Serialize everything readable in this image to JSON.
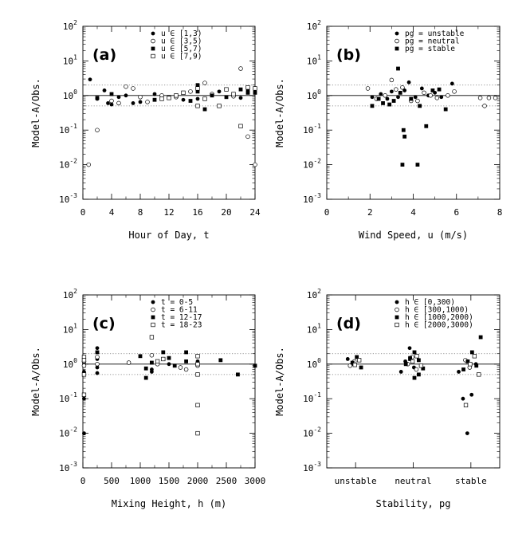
{
  "chart_data": [
    {
      "id": "a",
      "panel_label": "(a)",
      "type": "scatter",
      "xlabel": "Hour of Day, t",
      "ylabel": "Model-A/Obs.",
      "xlim": [
        0,
        24
      ],
      "ylim_log10": [
        -3,
        2
      ],
      "y_scale": "log",
      "xticks": [
        "0",
        "4",
        "8",
        "12",
        "16",
        "20",
        "24"
      ],
      "yticks": [
        "10^-3",
        "10^-2",
        "10^-1",
        "10^0",
        "10^1",
        "10^2"
      ],
      "reference_lines": {
        "solid": 1,
        "dotted": [
          0.5,
          2
        ]
      },
      "legend_position": "top-right",
      "series": [
        {
          "name": "u ∈ [1,3)",
          "marker": "filled-circle",
          "points": [
            [
              1,
              2.9
            ],
            [
              2,
              0.8
            ],
            [
              3,
              1.4
            ],
            [
              3.5,
              0.6
            ],
            [
              4,
              0.55
            ],
            [
              5,
              0.9
            ],
            [
              6,
              1.0
            ],
            [
              7,
              0.6
            ],
            [
              8,
              0.65
            ],
            [
              10,
              1.1
            ],
            [
              14,
              0.75
            ],
            [
              16,
              0.8
            ],
            [
              19,
              1.3
            ],
            [
              22,
              0.85
            ],
            [
              23,
              1.4
            ],
            [
              24,
              1.5
            ]
          ]
        },
        {
          "name": "u ∈ [3,5)",
          "marker": "open-circle",
          "points": [
            [
              0.8,
              0.01
            ],
            [
              2,
              0.1
            ],
            [
              4,
              0.7
            ],
            [
              5,
              0.6
            ],
            [
              6,
              1.8
            ],
            [
              7,
              1.6
            ],
            [
              8,
              0.9
            ],
            [
              9,
              0.65
            ],
            [
              11,
              1.0
            ],
            [
              13,
              0.9
            ],
            [
              15,
              1.3
            ],
            [
              17,
              2.3
            ],
            [
              18,
              1.1
            ],
            [
              21,
              0.95
            ],
            [
              22,
              6.0
            ],
            [
              23,
              0.065
            ],
            [
              24,
              0.01
            ]
          ]
        },
        {
          "name": "u ∈ [5,7)",
          "marker": "filled-square",
          "points": [
            [
              2,
              0.85
            ],
            [
              4,
              1.1
            ],
            [
              10,
              0.75
            ],
            [
              12,
              0.9
            ],
            [
              13,
              1.0
            ],
            [
              15,
              0.7
            ],
            [
              16,
              2.0
            ],
            [
              16,
              1.3
            ],
            [
              17,
              0.4
            ],
            [
              18,
              1.0
            ],
            [
              20,
              0.9
            ],
            [
              22,
              1.5
            ],
            [
              23,
              1.2
            ],
            [
              24,
              1.2
            ]
          ]
        },
        {
          "name": "u ∈ [7,9)",
          "marker": "open-square",
          "points": [
            [
              11,
              0.8
            ],
            [
              12,
              0.85
            ],
            [
              13,
              1.0
            ],
            [
              14,
              1.2
            ],
            [
              16,
              1.6
            ],
            [
              16,
              0.5
            ],
            [
              17,
              0.8
            ],
            [
              19,
              0.5
            ],
            [
              20,
              1.5
            ],
            [
              21,
              1.1
            ],
            [
              22,
              0.13
            ],
            [
              23,
              1.7
            ],
            [
              24,
              1.6
            ]
          ]
        }
      ]
    },
    {
      "id": "b",
      "panel_label": "(b)",
      "type": "scatter",
      "xlabel": "Wind Speed, u (m/s)",
      "ylabel": "Model-A/Obs.",
      "xlim": [
        0,
        8
      ],
      "ylim_log10": [
        -3,
        2
      ],
      "y_scale": "log",
      "xticks": [
        "0",
        "2",
        "4",
        "6",
        "8"
      ],
      "yticks": [
        "10^-3",
        "10^-2",
        "10^-1",
        "10^0",
        "10^1",
        "10^2"
      ],
      "reference_lines": {
        "solid": 1,
        "dotted": [
          0.5,
          2
        ]
      },
      "legend_position": "top-right",
      "series": [
        {
          "name": "pg = unstable",
          "marker": "filled-circle",
          "points": [
            [
              2.1,
              0.9
            ],
            [
              2.5,
              1.1
            ],
            [
              2.8,
              0.8
            ],
            [
              3.0,
              1.3
            ],
            [
              3.3,
              0.9
            ],
            [
              3.6,
              1.4
            ],
            [
              3.8,
              2.4
            ],
            [
              4.1,
              0.9
            ],
            [
              4.4,
              1.6
            ],
            [
              4.7,
              1.0
            ],
            [
              5.0,
              1.2
            ],
            [
              5.3,
              0.9
            ],
            [
              5.8,
              2.2
            ]
          ]
        },
        {
          "name": "pg = neutral",
          "marker": "open-circle",
          "points": [
            [
              1.9,
              1.6
            ],
            [
              2.3,
              0.8
            ],
            [
              2.7,
              1.0
            ],
            [
              3.0,
              2.8
            ],
            [
              3.2,
              1.5
            ],
            [
              3.5,
              1.7
            ],
            [
              3.9,
              0.7
            ],
            [
              4.2,
              0.7
            ],
            [
              4.5,
              1.2
            ],
            [
              4.8,
              1.0
            ],
            [
              5.1,
              0.85
            ],
            [
              5.6,
              1.0
            ],
            [
              5.9,
              1.3
            ],
            [
              7.1,
              0.85
            ],
            [
              7.3,
              0.5
            ],
            [
              7.5,
              0.85
            ],
            [
              7.8,
              0.85
            ]
          ]
        },
        {
          "name": "pg = stable",
          "marker": "filled-square",
          "points": [
            [
              2.1,
              0.5
            ],
            [
              2.4,
              0.8
            ],
            [
              2.6,
              0.6
            ],
            [
              2.9,
              0.55
            ],
            [
              3.1,
              0.7
            ],
            [
              3.3,
              6.0
            ],
            [
              3.4,
              1.2
            ],
            [
              3.5,
              0.01
            ],
            [
              3.55,
              0.1
            ],
            [
              3.6,
              0.065
            ],
            [
              3.9,
              0.8
            ],
            [
              4.2,
              0.01
            ],
            [
              4.3,
              0.5
            ],
            [
              4.6,
              0.13
            ],
            [
              4.9,
              1.4
            ],
            [
              5.2,
              1.5
            ],
            [
              5.5,
              0.4
            ]
          ]
        }
      ]
    },
    {
      "id": "c",
      "panel_label": "(c)",
      "type": "scatter",
      "xlabel": "Mixing Height, h (m)",
      "ylabel": "Model-A/Obs.",
      "xlim": [
        0,
        3000
      ],
      "ylim_log10": [
        -3,
        2
      ],
      "y_scale": "log",
      "xticks": [
        "0",
        "500",
        "1000",
        "1500",
        "2000",
        "2500",
        "3000"
      ],
      "yticks": [
        "10^-3",
        "10^-2",
        "10^-1",
        "10^0",
        "10^1",
        "10^2"
      ],
      "reference_lines": {
        "solid": 1,
        "dotted": [
          0.5,
          2
        ]
      },
      "legend_position": "top-right",
      "series": [
        {
          "name": "t = 0-5",
          "marker": "filled-circle",
          "points": [
            [
              20,
              0.01
            ],
            [
              20,
              0.1
            ],
            [
              20,
              0.6
            ],
            [
              20,
              1.0
            ],
            [
              250,
              2.9
            ],
            [
              250,
              1.4
            ],
            [
              250,
              0.8
            ],
            [
              250,
              0.55
            ],
            [
              1200,
              0.6
            ],
            [
              1200,
              0.7
            ],
            [
              1500,
              1.0
            ],
            [
              2000,
              1.2
            ]
          ]
        },
        {
          "name": "t = 6-11",
          "marker": "open-circle",
          "points": [
            [
              20,
              1.2
            ],
            [
              20,
              0.9
            ],
            [
              250,
              1.6
            ],
            [
              250,
              1.0
            ],
            [
              800,
              1.1
            ],
            [
              1200,
              1.8
            ],
            [
              1300,
              1.0
            ],
            [
              1700,
              0.8
            ],
            [
              1800,
              0.7
            ],
            [
              2000,
              0.9
            ]
          ]
        },
        {
          "name": "t = 12-17",
          "marker": "filled-square",
          "points": [
            [
              250,
              2.2
            ],
            [
              1000,
              1.7
            ],
            [
              1100,
              0.75
            ],
            [
              1100,
              0.4
            ],
            [
              1200,
              1.1
            ],
            [
              1400,
              2.2
            ],
            [
              1500,
              1.5
            ],
            [
              1600,
              0.9
            ],
            [
              1800,
              2.2
            ],
            [
              1800,
              1.2
            ],
            [
              2400,
              1.3
            ],
            [
              2700,
              0.5
            ],
            [
              3000,
              0.9
            ]
          ]
        },
        {
          "name": "t = 18-23",
          "marker": "open-square",
          "points": [
            [
              20,
              1.6
            ],
            [
              20,
              1.3
            ],
            [
              20,
              0.13
            ],
            [
              20,
              0.5
            ],
            [
              1200,
              6.0
            ],
            [
              1300,
              1.2
            ],
            [
              1400,
              1.4
            ],
            [
              2000,
              0.065
            ],
            [
              2000,
              0.01
            ],
            [
              2000,
              1.7
            ],
            [
              2000,
              0.5
            ],
            [
              2000,
              1.0
            ]
          ]
        }
      ]
    },
    {
      "id": "d",
      "panel_label": "(d)",
      "type": "scatter",
      "xlabel": "Stability, pg",
      "ylabel": "Model-A/Obs.",
      "categories": [
        "unstable",
        "neutral",
        "stable"
      ],
      "ylim_log10": [
        -3,
        2
      ],
      "y_scale": "log",
      "yticks": [
        "10^-3",
        "10^-2",
        "10^-1",
        "10^0",
        "10^1",
        "10^2"
      ],
      "reference_lines": {
        "solid": 1,
        "dotted": [
          0.5,
          2
        ]
      },
      "legend_position": "top-right",
      "series": [
        {
          "name": "h ∈ [0,300)",
          "marker": "filled-circle",
          "points": [
            [
              "unstable",
              1.0
            ],
            [
              "unstable",
              1.4
            ],
            [
              "neutral",
              2.9
            ],
            [
              "neutral",
              1.2
            ],
            [
              "neutral",
              0.8
            ],
            [
              "neutral",
              0.6
            ],
            [
              "stable",
              0.01
            ],
            [
              "stable",
              0.1
            ],
            [
              "stable",
              0.13
            ],
            [
              "stable",
              0.6
            ],
            [
              "stable",
              1.0
            ]
          ]
        },
        {
          "name": "h ∈ [300,1000)",
          "marker": "open-circle",
          "points": [
            [
              "unstable",
              1.2
            ],
            [
              "unstable",
              0.9
            ],
            [
              "neutral",
              1.6
            ],
            [
              "neutral",
              1.0
            ],
            [
              "neutral",
              0.7
            ],
            [
              "stable",
              0.8
            ],
            [
              "stable",
              1.3
            ]
          ]
        },
        {
          "name": "h ∈ [1000,2000)",
          "marker": "filled-square",
          "points": [
            [
              "unstable",
              1.6
            ],
            [
              "unstable",
              1.1
            ],
            [
              "unstable",
              0.8
            ],
            [
              "neutral",
              2.2
            ],
            [
              "neutral",
              1.5
            ],
            [
              "neutral",
              1.3
            ],
            [
              "neutral",
              1.0
            ],
            [
              "neutral",
              0.75
            ],
            [
              "neutral",
              0.4
            ],
            [
              "neutral",
              1.4
            ],
            [
              "neutral",
              0.5
            ],
            [
              "stable",
              2.2
            ],
            [
              "stable",
              1.2
            ],
            [
              "stable",
              0.9
            ],
            [
              "stable",
              0.7
            ],
            [
              "stable",
              6.0
            ]
          ]
        },
        {
          "name": "h ∈ [2000,3000)",
          "marker": "open-square",
          "points": [
            [
              "unstable",
              1.3
            ],
            [
              "unstable",
              0.95
            ],
            [
              "neutral",
              1.7
            ],
            [
              "neutral",
              1.2
            ],
            [
              "neutral",
              0.9
            ],
            [
              "stable",
              1.7
            ],
            [
              "stable",
              1.0
            ],
            [
              "stable",
              0.5
            ],
            [
              "stable",
              0.065
            ]
          ]
        }
      ]
    }
  ]
}
